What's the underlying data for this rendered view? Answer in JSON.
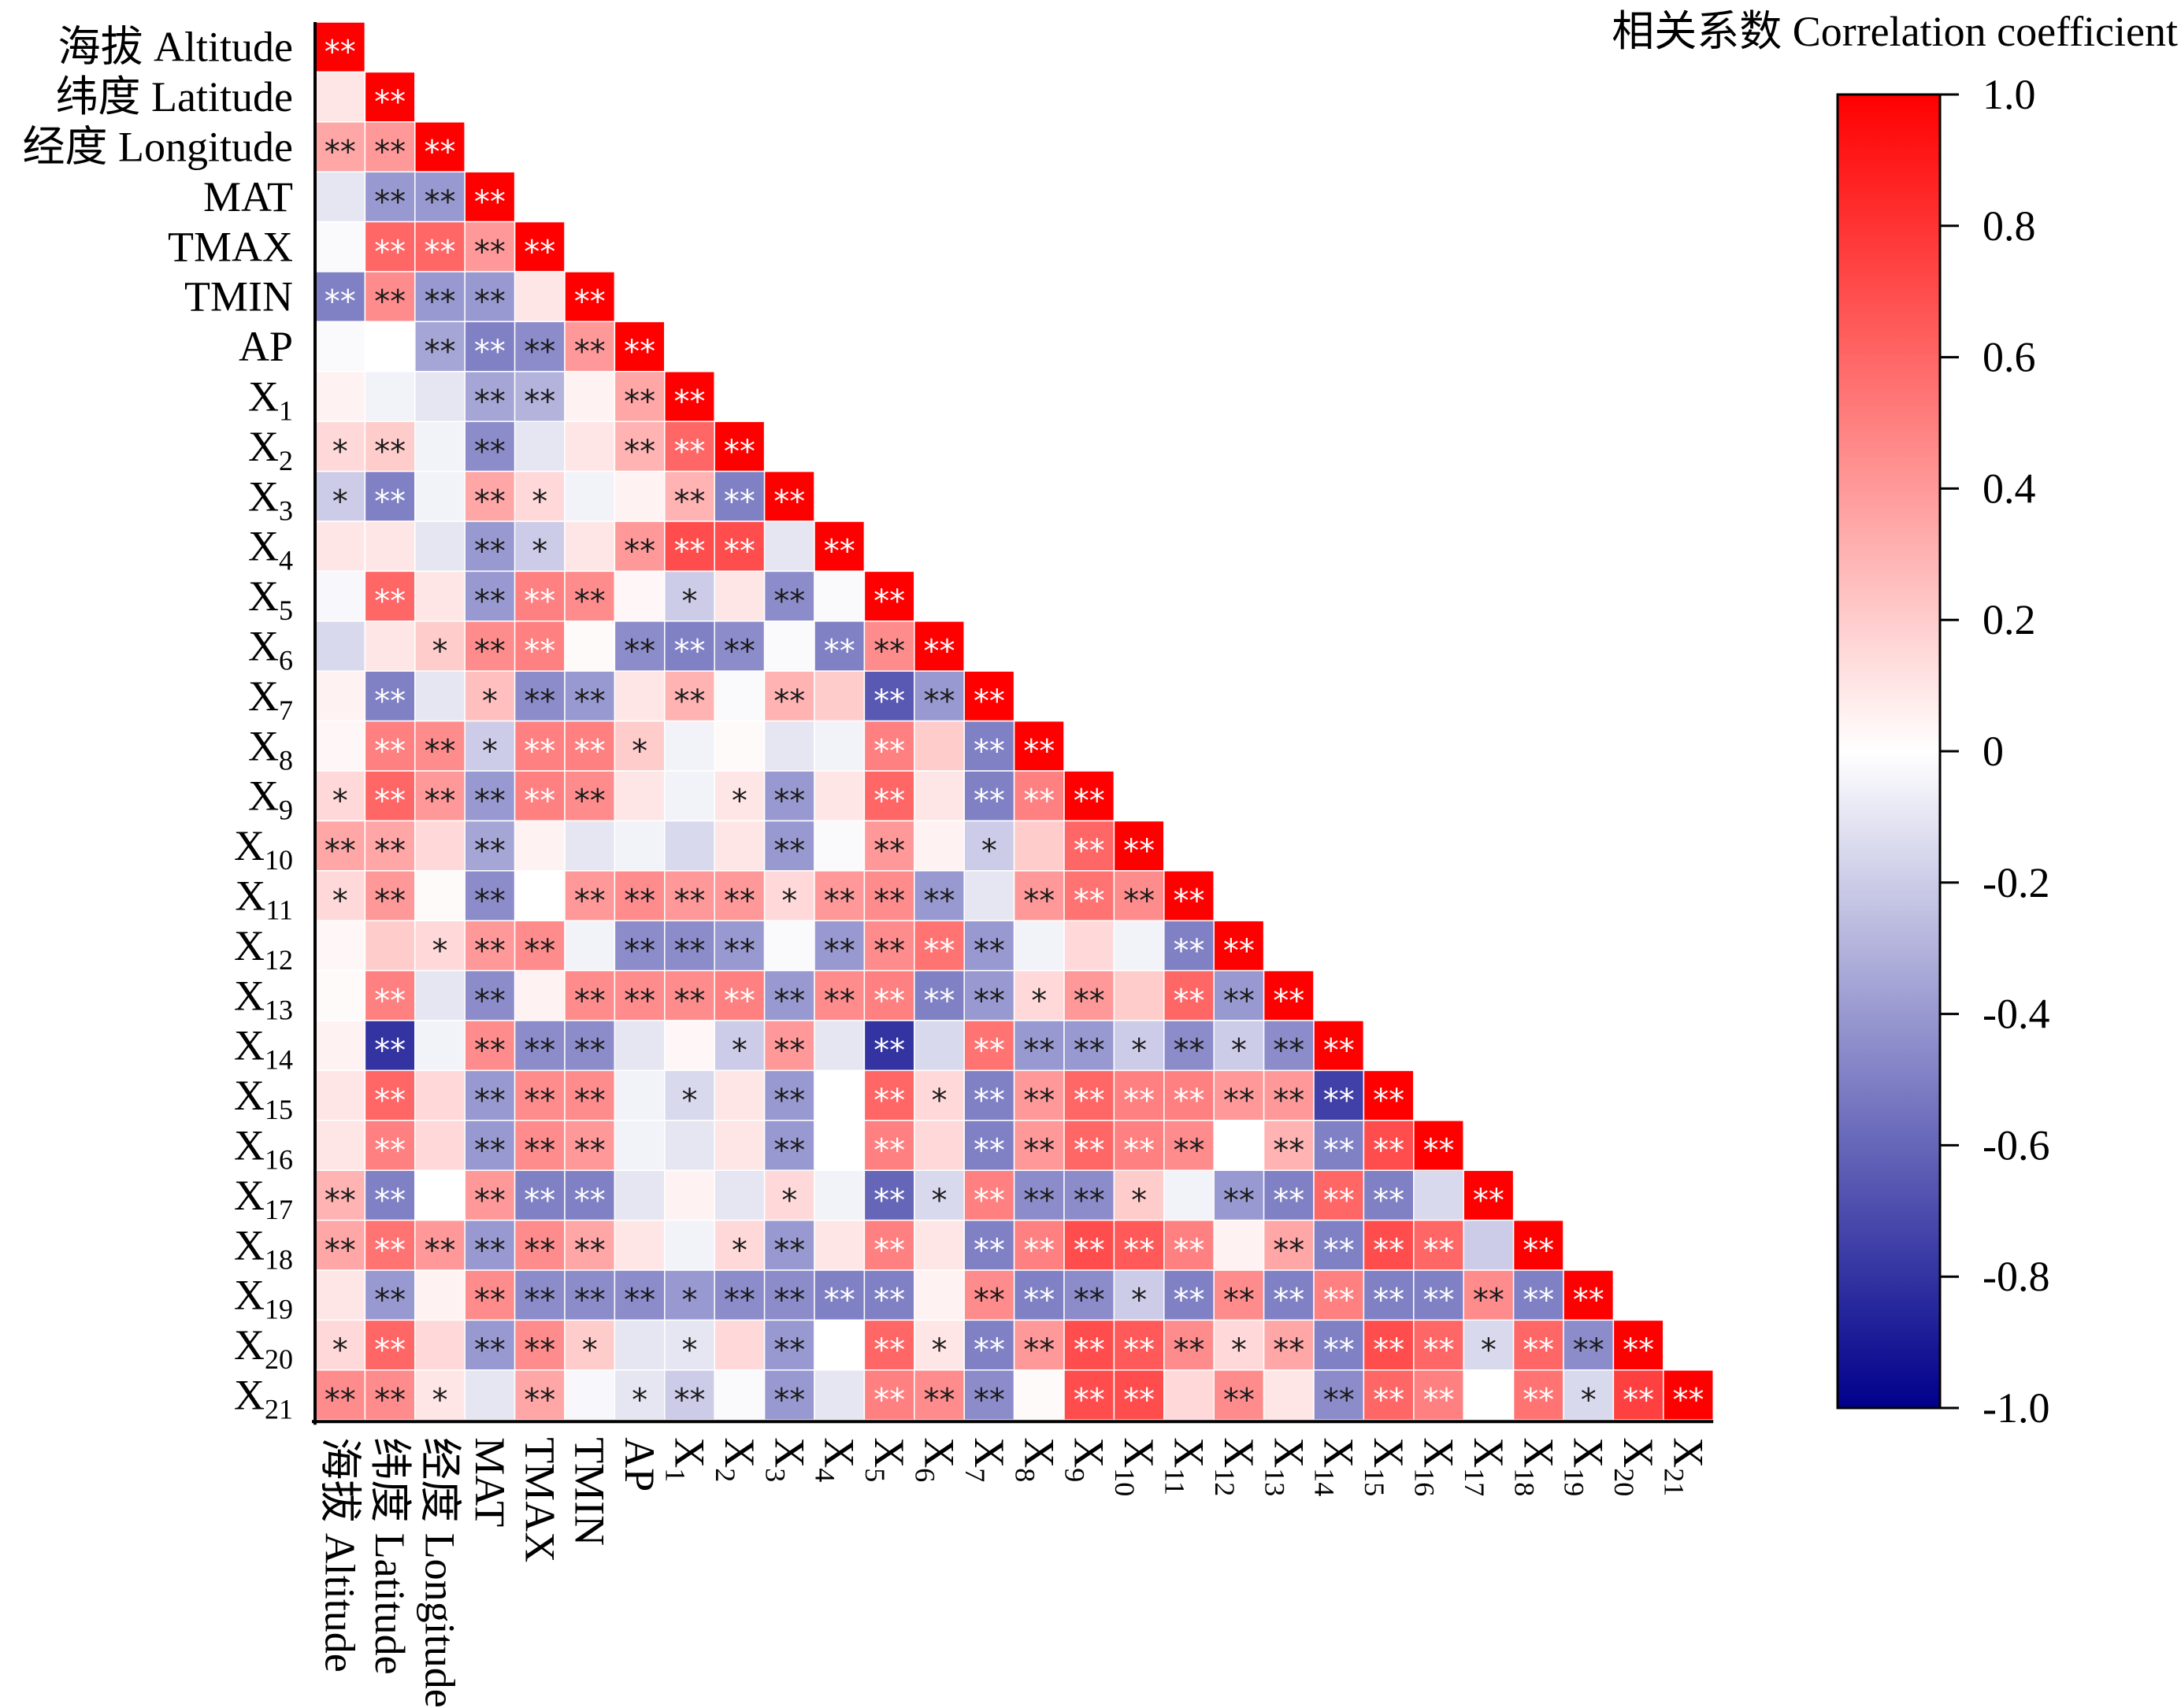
{
  "chart_data": {
    "type": "heatmap",
    "subtype": "lower-triangular correlation matrix",
    "variables": [
      {
        "main": "海拔 Altitude",
        "sub": ""
      },
      {
        "main": "纬度 Latitude",
        "sub": ""
      },
      {
        "main": "经度 Longitude",
        "sub": ""
      },
      {
        "main": "MAT",
        "sub": ""
      },
      {
        "main": "TMAX",
        "sub": ""
      },
      {
        "main": "TMIN",
        "sub": ""
      },
      {
        "main": "AP",
        "sub": ""
      },
      {
        "main": "X",
        "sub": "1"
      },
      {
        "main": "X",
        "sub": "2"
      },
      {
        "main": "X",
        "sub": "3"
      },
      {
        "main": "X",
        "sub": "4"
      },
      {
        "main": "X",
        "sub": "5"
      },
      {
        "main": "X",
        "sub": "6"
      },
      {
        "main": "X",
        "sub": "7"
      },
      {
        "main": "X",
        "sub": "8"
      },
      {
        "main": "X",
        "sub": "9"
      },
      {
        "main": "X",
        "sub": "10"
      },
      {
        "main": "X",
        "sub": "11"
      },
      {
        "main": "X",
        "sub": "12"
      },
      {
        "main": "X",
        "sub": "13"
      },
      {
        "main": "X",
        "sub": "14"
      },
      {
        "main": "X",
        "sub": "15"
      },
      {
        "main": "X",
        "sub": "16"
      },
      {
        "main": "X",
        "sub": "17"
      },
      {
        "main": "X",
        "sub": "18"
      },
      {
        "main": "X",
        "sub": "19"
      },
      {
        "main": "X",
        "sub": "20"
      },
      {
        "main": "X",
        "sub": "21"
      }
    ],
    "matrix": [
      [
        1.0
      ],
      [
        0.1,
        1.0
      ],
      [
        0.35,
        0.4,
        1.0
      ],
      [
        -0.1,
        -0.4,
        -0.4,
        1.0
      ],
      [
        -0.02,
        0.6,
        0.6,
        0.4,
        1.0
      ],
      [
        -0.5,
        0.45,
        -0.4,
        -0.4,
        0.1,
        1.0
      ],
      [
        -0.02,
        0.0,
        -0.35,
        -0.5,
        -0.45,
        0.4,
        1.0
      ],
      [
        0.05,
        -0.05,
        -0.1,
        -0.35,
        -0.3,
        0.05,
        0.35,
        1.0
      ],
      [
        0.15,
        0.2,
        -0.05,
        -0.45,
        -0.1,
        0.1,
        0.3,
        0.6,
        1.0
      ],
      [
        -0.2,
        -0.5,
        -0.05,
        0.35,
        0.15,
        -0.05,
        0.05,
        0.3,
        -0.5,
        1.0
      ],
      [
        0.1,
        0.1,
        -0.1,
        -0.4,
        -0.2,
        0.1,
        0.4,
        0.7,
        0.7,
        -0.1,
        1.0
      ],
      [
        -0.03,
        0.6,
        0.1,
        -0.4,
        0.5,
        0.45,
        0.03,
        -0.2,
        0.1,
        -0.45,
        -0.02,
        1.0
      ],
      [
        -0.15,
        0.1,
        0.2,
        0.45,
        0.5,
        0.02,
        -0.45,
        -0.5,
        -0.45,
        -0.02,
        -0.5,
        0.45,
        1.0
      ],
      [
        0.05,
        -0.5,
        -0.1,
        0.25,
        -0.45,
        -0.4,
        0.1,
        0.3,
        -0.02,
        0.3,
        0.2,
        -0.65,
        -0.4,
        1.0
      ],
      [
        0.03,
        0.5,
        0.45,
        -0.2,
        0.5,
        0.5,
        0.2,
        -0.05,
        0.02,
        -0.1,
        -0.05,
        0.5,
        0.2,
        -0.5,
        1.0
      ],
      [
        0.15,
        0.6,
        0.4,
        -0.4,
        0.5,
        0.45,
        0.1,
        -0.05,
        0.1,
        -0.4,
        0.1,
        0.6,
        0.1,
        -0.5,
        0.5,
        1.0
      ],
      [
        0.35,
        0.35,
        0.15,
        -0.35,
        0.05,
        -0.1,
        -0.05,
        -0.15,
        0.1,
        -0.4,
        -0.02,
        0.4,
        0.05,
        -0.2,
        0.2,
        0.6,
        1.0
      ],
      [
        0.15,
        0.4,
        0.02,
        -0.45,
        0.0,
        0.4,
        0.45,
        0.4,
        0.4,
        0.15,
        0.4,
        0.45,
        -0.4,
        -0.1,
        0.4,
        0.55,
        0.45,
        1.0
      ],
      [
        0.03,
        0.2,
        0.15,
        0.4,
        0.45,
        -0.05,
        -0.45,
        -0.45,
        -0.4,
        -0.02,
        -0.4,
        0.45,
        0.55,
        -0.4,
        -0.05,
        0.15,
        -0.05,
        -0.5,
        1.0
      ],
      [
        0.02,
        0.5,
        -0.1,
        -0.45,
        0.05,
        0.45,
        0.45,
        0.45,
        0.5,
        -0.4,
        0.45,
        0.5,
        -0.5,
        -0.4,
        0.15,
        0.4,
        0.2,
        0.6,
        -0.4,
        1.0
      ],
      [
        0.05,
        -0.8,
        -0.05,
        0.45,
        -0.45,
        -0.45,
        -0.1,
        0.03,
        -0.2,
        0.4,
        -0.1,
        -0.8,
        -0.15,
        0.55,
        -0.4,
        -0.4,
        -0.2,
        -0.45,
        -0.2,
        -0.45,
        1.0
      ],
      [
        0.1,
        0.6,
        0.15,
        -0.4,
        0.45,
        0.45,
        -0.05,
        -0.15,
        0.1,
        -0.4,
        0.0,
        0.6,
        0.15,
        -0.5,
        0.4,
        0.6,
        0.5,
        0.5,
        0.4,
        0.4,
        -0.75,
        1.0
      ],
      [
        0.1,
        0.5,
        0.15,
        -0.4,
        0.45,
        0.4,
        -0.05,
        -0.1,
        0.1,
        -0.4,
        0.0,
        0.5,
        0.15,
        -0.5,
        0.4,
        0.6,
        0.5,
        0.45,
        0.0,
        0.3,
        -0.5,
        0.7,
        1.0
      ],
      [
        0.3,
        -0.5,
        0.0,
        0.4,
        -0.5,
        -0.5,
        -0.1,
        0.05,
        -0.1,
        0.15,
        -0.05,
        -0.6,
        -0.15,
        0.5,
        -0.45,
        -0.45,
        0.2,
        -0.05,
        -0.4,
        -0.5,
        0.6,
        -0.5,
        -0.15,
        1.0
      ],
      [
        0.35,
        0.55,
        0.4,
        -0.4,
        0.45,
        0.35,
        0.1,
        -0.05,
        0.15,
        -0.4,
        0.1,
        0.5,
        0.1,
        -0.5,
        0.5,
        0.7,
        0.65,
        0.5,
        0.05,
        0.35,
        -0.5,
        0.7,
        0.6,
        -0.2,
        1.0
      ],
      [
        0.1,
        -0.4,
        0.05,
        0.45,
        -0.45,
        -0.45,
        -0.45,
        -0.4,
        -0.45,
        -0.45,
        -0.5,
        -0.5,
        0.05,
        0.45,
        -0.5,
        -0.45,
        -0.2,
        -0.5,
        0.45,
        -0.5,
        0.5,
        -0.5,
        -0.5,
        0.45,
        -0.5,
        1.0
      ],
      [
        0.15,
        0.6,
        0.15,
        -0.4,
        0.45,
        0.2,
        -0.1,
        -0.1,
        0.15,
        -0.4,
        0.0,
        0.6,
        0.1,
        -0.5,
        0.4,
        0.7,
        0.65,
        0.45,
        0.15,
        0.35,
        -0.5,
        0.7,
        0.6,
        -0.15,
        0.6,
        -0.45,
        1.0
      ],
      [
        0.45,
        0.45,
        0.1,
        -0.1,
        0.35,
        -0.03,
        -0.1,
        -0.2,
        -0.02,
        -0.4,
        -0.1,
        0.5,
        0.45,
        -0.45,
        0.02,
        0.7,
        0.7,
        0.15,
        0.45,
        0.1,
        -0.45,
        0.6,
        0.5,
        0.0,
        0.55,
        -0.15,
        0.75,
        1.0
      ]
    ],
    "significance": [
      [
        "**"
      ],
      [
        "",
        "**"
      ],
      [
        "**",
        "**",
        "**"
      ],
      [
        "",
        "**",
        "**",
        "**"
      ],
      [
        "",
        "**",
        "**",
        "**",
        "**"
      ],
      [
        "**",
        "**",
        "**",
        "**",
        "",
        "**"
      ],
      [
        "",
        "",
        "**",
        "**",
        "**",
        "**",
        "**"
      ],
      [
        "",
        "",
        "",
        "**",
        "**",
        "",
        "**",
        "**"
      ],
      [
        "*",
        "**",
        "",
        "**",
        "",
        "",
        "**",
        "**",
        "**"
      ],
      [
        "*",
        "**",
        "",
        "**",
        "*",
        "",
        "",
        "**",
        "**",
        "**"
      ],
      [
        "",
        "",
        "",
        "**",
        "*",
        "",
        "**",
        "**",
        "**",
        "",
        "**"
      ],
      [
        "",
        "**",
        "",
        "**",
        "**",
        "**",
        "",
        "*",
        "",
        "**",
        "",
        "**"
      ],
      [
        "",
        "",
        "*",
        "**",
        "**",
        "",
        "**",
        "**",
        "**",
        "",
        "**",
        "**",
        "**"
      ],
      [
        "",
        "**",
        "",
        "*",
        "**",
        "**",
        "",
        "**",
        "",
        "**",
        "",
        "**",
        "**",
        "**"
      ],
      [
        "",
        "**",
        "**",
        "*",
        "**",
        "**",
        "*",
        "",
        "",
        "",
        "",
        "**",
        "",
        "**",
        "**"
      ],
      [
        "*",
        "**",
        "**",
        "**",
        "**",
        "**",
        "",
        "",
        "*",
        "**",
        "",
        "**",
        "",
        "**",
        "**",
        "**"
      ],
      [
        "**",
        "**",
        "",
        "**",
        "",
        "",
        "",
        "",
        "",
        "**",
        "",
        "**",
        "",
        "*",
        "",
        "**",
        "**"
      ],
      [
        "*",
        "**",
        "",
        "**",
        "",
        "**",
        "**",
        "**",
        "**",
        "*",
        "**",
        "**",
        "**",
        "",
        "**",
        "**",
        "**",
        "**"
      ],
      [
        "",
        "",
        "*",
        "**",
        "**",
        "",
        "**",
        "**",
        "**",
        "",
        "**",
        "**",
        "**",
        "**",
        "",
        "",
        "",
        "**",
        "**"
      ],
      [
        "",
        "**",
        "",
        "**",
        "",
        "**",
        "**",
        "**",
        "**",
        "**",
        "**",
        "**",
        "**",
        "**",
        "*",
        "**",
        "",
        "**",
        "**",
        "**"
      ],
      [
        "",
        "**",
        "",
        "**",
        "**",
        "**",
        "",
        "",
        "*",
        "**",
        "",
        "**",
        "",
        "**",
        "**",
        "**",
        "*",
        "**",
        "*",
        "**",
        "**"
      ],
      [
        "",
        "**",
        "",
        "**",
        "**",
        "**",
        "",
        "*",
        "",
        "**",
        "",
        "**",
        "*",
        "**",
        "**",
        "**",
        "**",
        "**",
        "**",
        "**",
        "**",
        "**"
      ],
      [
        "",
        "**",
        "",
        "**",
        "**",
        "**",
        "",
        "",
        "",
        "**",
        "",
        "**",
        "",
        "**",
        "**",
        "**",
        "**",
        "**",
        "",
        "**",
        "**",
        "**",
        "**"
      ],
      [
        "**",
        "**",
        "",
        "**",
        "**",
        "**",
        "",
        "",
        "",
        "*",
        "",
        "**",
        "*",
        "**",
        "**",
        "**",
        "*",
        "",
        "**",
        "**",
        "**",
        "**",
        "",
        "**"
      ],
      [
        "**",
        "**",
        "**",
        "**",
        "**",
        "**",
        "",
        "",
        "*",
        "**",
        "",
        "**",
        "",
        "**",
        "**",
        "**",
        "**",
        "**",
        "",
        "**",
        "**",
        "**",
        "**",
        "",
        "**"
      ],
      [
        "",
        "**",
        "",
        "**",
        "**",
        "**",
        "**",
        "*",
        "**",
        "**",
        "**",
        "**",
        "",
        "**",
        "**",
        "**",
        "*",
        "**",
        "**",
        "**",
        "**",
        "**",
        "**",
        "**",
        "**",
        "**"
      ],
      [
        "*",
        "**",
        "",
        "**",
        "**",
        "*",
        "",
        "*",
        "",
        "**",
        "",
        "**",
        "*",
        "**",
        "**",
        "**",
        "**",
        "**",
        "*",
        "**",
        "**",
        "**",
        "**",
        "*",
        "**",
        "**",
        "**"
      ],
      [
        "**",
        "**",
        "*",
        "",
        "**",
        "",
        "*",
        "**",
        "",
        "**",
        "",
        "**",
        "**",
        "**",
        "",
        "**",
        "**",
        "",
        "**",
        "",
        "**",
        "**",
        "**",
        "",
        "**",
        "*",
        "**",
        "**"
      ]
    ],
    "colorbar": {
      "title": "相关系数 Correlation coefficient",
      "range": [
        -1.0,
        1.0
      ],
      "ticks": [
        1.0,
        0.8,
        0.6,
        0.4,
        0.2,
        0,
        -0.2,
        -0.4,
        -0.6,
        -0.8,
        -1.0
      ],
      "tick_labels": [
        "1.0",
        "0.8",
        "0.6",
        "0.4",
        "0.2",
        "0",
        "-0.2",
        "-0.4",
        "-0.6",
        "-0.8",
        "-1.0"
      ],
      "colors": {
        "low": "#00008b",
        "mid": "#ffffff",
        "high": "#ff0000"
      }
    },
    "legend_position": "top-right"
  }
}
